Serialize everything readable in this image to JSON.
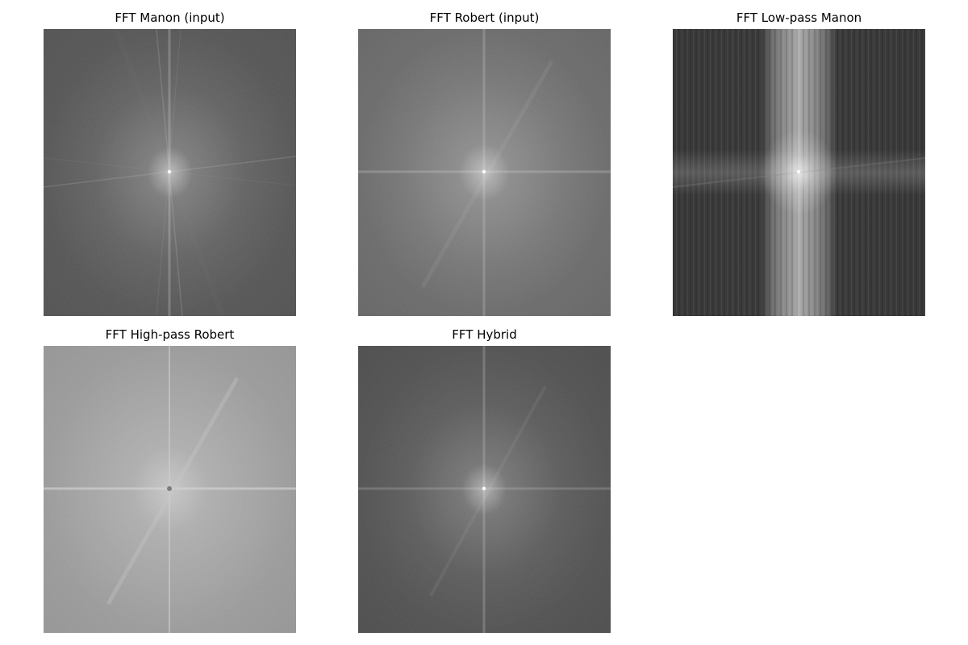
{
  "figure": {
    "panels": [
      {
        "title": "FFT Manon (input)"
      },
      {
        "title": "FFT Robert (input)"
      },
      {
        "title": "FFT Low-pass Manon"
      },
      {
        "title": "FFT High-pass Robert"
      },
      {
        "title": "FFT Hybrid"
      }
    ]
  },
  "colors": {
    "background": "#ffffff",
    "title_text": "#000000",
    "manon_base": "#5e5e5e",
    "robert_base": "#767676",
    "lowpass_base": "#3a3a3a",
    "highpass_base": "#a4a4a4",
    "hybrid_base": "#5a5a5a"
  }
}
